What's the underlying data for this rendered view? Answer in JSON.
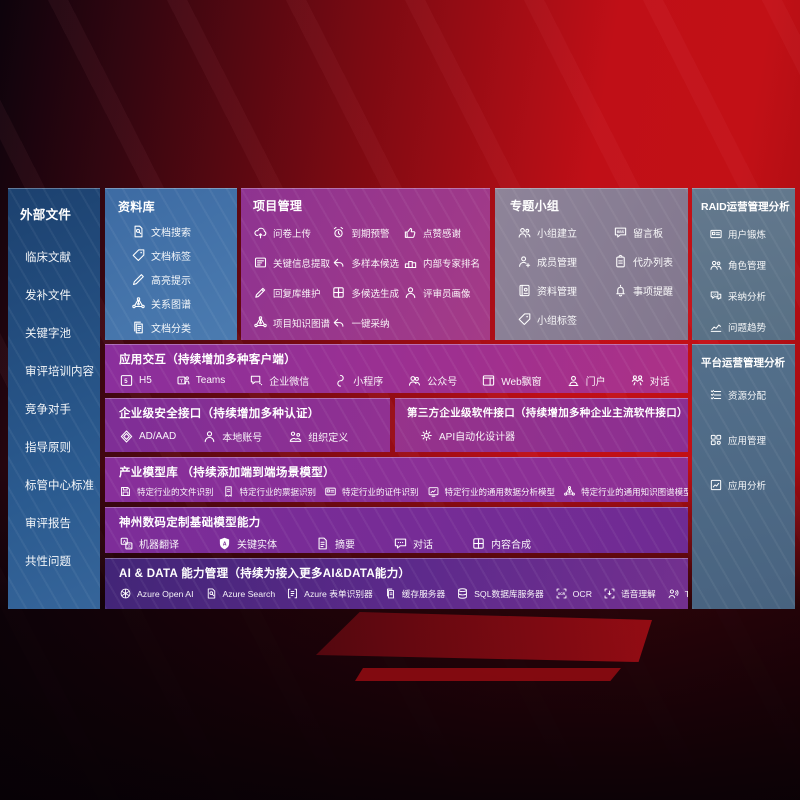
{
  "colors": {
    "background_red": "#b40d15",
    "background_dark": "#1a050c",
    "sidebar_blue": "#24517f",
    "library_blue": "#41709f",
    "project_magenta": "#993a8c",
    "topic_mauve": "#878093",
    "ops_slate": "#5d7589",
    "purple_row": "#832f97",
    "aidata_indigo": "#45257f",
    "text": "#ffffff"
  },
  "panels": [
    {
      "id": "sidebar",
      "type": "list",
      "title": "外部文件",
      "items": [
        {
          "label": "临床文献"
        },
        {
          "label": "发补文件"
        },
        {
          "label": "关键字池"
        },
        {
          "label": "审评培训内容"
        },
        {
          "label": "竞争对手"
        },
        {
          "label": "指导原则"
        },
        {
          "label": "标管中心标准"
        },
        {
          "label": "审评报告"
        },
        {
          "label": "共性问题"
        }
      ]
    },
    {
      "id": "library",
      "type": "list",
      "title": "资料库",
      "items": [
        {
          "icon": "doc-search",
          "label": "文档搜索"
        },
        {
          "icon": "tag",
          "label": "文档标签"
        },
        {
          "icon": "highlighter",
          "label": "高亮提示"
        },
        {
          "icon": "relation-graph",
          "label": "关系图谱"
        },
        {
          "icon": "doc-stack",
          "label": "文档分类"
        }
      ]
    },
    {
      "id": "project",
      "type": "cols",
      "title": "项目管理",
      "columns": [
        [
          {
            "icon": "cloud-upload",
            "label": "问卷上传"
          },
          {
            "icon": "info-extract",
            "label": "关键信息提取"
          },
          {
            "icon": "pencil",
            "label": "回复库维护"
          },
          {
            "icon": "relation-graph",
            "label": "项目知识图谱"
          }
        ],
        [
          {
            "icon": "alarm",
            "label": "到期预警"
          },
          {
            "icon": "reply-arrow",
            "label": "多样本候选"
          },
          {
            "icon": "multi-generate",
            "label": "多候选生成"
          },
          {
            "icon": "adopt-arrow",
            "label": "一键采纳"
          }
        ],
        [
          {
            "icon": "thumbs-up",
            "label": "点赞感谢"
          },
          {
            "icon": "ranking-podium",
            "label": "内部专家排名"
          },
          {
            "icon": "person",
            "label": "评审员画像"
          }
        ]
      ]
    },
    {
      "id": "topic",
      "type": "cols",
      "title": "专题小组",
      "columns": [
        [
          {
            "icon": "people",
            "label": "小组建立"
          },
          {
            "icon": "person-add",
            "label": "成员管理"
          },
          {
            "icon": "album",
            "label": "资料管理"
          },
          {
            "icon": "tag",
            "label": "小组标签"
          }
        ],
        [
          {
            "icon": "bbs-board",
            "label": "留言板"
          },
          {
            "icon": "clipboard",
            "label": "代办列表"
          },
          {
            "icon": "bell",
            "label": "事项提醒"
          }
        ]
      ]
    },
    {
      "id": "raid",
      "type": "list",
      "title": "RAID运营管理分析",
      "items": [
        {
          "icon": "id-card",
          "label": "用户锻炼"
        },
        {
          "icon": "people",
          "label": "角色管理"
        },
        {
          "icon": "chat-qa",
          "label": "采纳分析"
        },
        {
          "icon": "trend-chart",
          "label": "问题趋势"
        }
      ]
    },
    {
      "id": "platform",
      "type": "list",
      "title": "平台运营管理分析",
      "items": [
        {
          "icon": "task-list",
          "label": "资源分配"
        },
        {
          "icon": "app-grid",
          "label": "应用管理"
        },
        {
          "icon": "chart-box",
          "label": "应用分析"
        }
      ]
    },
    {
      "id": "interact",
      "type": "row",
      "title": "应用交互（持续增加多种客户端）",
      "items": [
        {
          "icon": "h5",
          "label": "H5"
        },
        {
          "icon": "teams",
          "label": "Teams"
        },
        {
          "icon": "wecom-chat",
          "label": "企业微信"
        },
        {
          "icon": "miniprogram",
          "label": "小程序"
        },
        {
          "icon": "official-account",
          "label": "公众号"
        },
        {
          "icon": "web-window",
          "label": "Web飘窗"
        },
        {
          "icon": "portal-person",
          "label": "门户"
        },
        {
          "icon": "dialog-people",
          "label": "对话"
        }
      ]
    },
    {
      "id": "security",
      "type": "row",
      "title": "企业级安全接口（持续增加多种认证）",
      "items": [
        {
          "icon": "ad-shield",
          "label": "AD/AAD"
        },
        {
          "icon": "person",
          "label": "本地账号"
        },
        {
          "icon": "org-people",
          "label": "组织定义"
        }
      ]
    },
    {
      "id": "thirdparty",
      "type": "row",
      "title": "第三方企业级软件接口（持续增加多种企业主流软件接口）",
      "items": [
        {
          "icon": "api-gear",
          "label": "API自动化设计器"
        }
      ]
    },
    {
      "id": "industry",
      "type": "row",
      "title": "产业模型库 （持续添加端到端场景模型）",
      "items": [
        {
          "icon": "save-disk",
          "label": "特定行业的文件识别"
        },
        {
          "icon": "receipt",
          "label": "特定行业的票据识别"
        },
        {
          "icon": "id-card",
          "label": "特定行业的证件识别"
        },
        {
          "icon": "data-monitor",
          "label": "特定行业的通用数据分析模型"
        },
        {
          "icon": "relation-graph",
          "label": "特定行业的通用知识图谱模型"
        }
      ]
    },
    {
      "id": "digital",
      "type": "row",
      "title": "神州数码定制基础模型能力",
      "items": [
        {
          "icon": "translate",
          "label": "机器翻译"
        },
        {
          "icon": "shield-a",
          "label": "关键实体"
        },
        {
          "icon": "summary-doc",
          "label": "摘要"
        },
        {
          "icon": "chat-dots",
          "label": "对话"
        },
        {
          "icon": "multi-generate",
          "label": "内容合成"
        }
      ]
    },
    {
      "id": "aidata",
      "type": "row",
      "title": "AI & DATA 能力管理（持续为接入更多AI&DATA能力）",
      "items": [
        {
          "icon": "openai",
          "label": "Azure Open AI"
        },
        {
          "icon": "azure-search",
          "label": "Azure Search"
        },
        {
          "icon": "form-recognizer",
          "label": "Azure 表单识别器"
        },
        {
          "icon": "cache-server",
          "label": "缓存服务器"
        },
        {
          "icon": "sql-database",
          "label": "SQL数据库服务器"
        },
        {
          "icon": "ocr-frame",
          "label": "OCR"
        },
        {
          "icon": "speech-frame",
          "label": "语音理解"
        },
        {
          "icon": "tts-voice",
          "label": "TTS"
        }
      ]
    }
  ]
}
